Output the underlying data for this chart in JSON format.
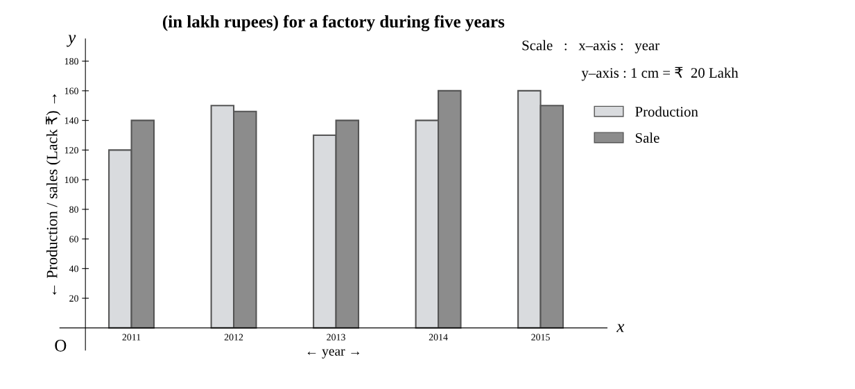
{
  "chart_data": {
    "type": "bar",
    "title": "(in lakh rupees) for a factory during five years",
    "xlabel": "← year →",
    "ylabel": "← Production / sales (Lack ₹) →",
    "categories": [
      "2011",
      "2012",
      "2013",
      "2014",
      "2015"
    ],
    "series": [
      {
        "name": "Production",
        "color": "#d9dbde",
        "values": [
          120,
          150,
          130,
          140,
          160
        ]
      },
      {
        "name": "Sale",
        "color": "#8c8c8c",
        "values": [
          140,
          146,
          140,
          160,
          150
        ]
      }
    ],
    "ylim": [
      -15,
      195
    ],
    "yticks": [
      20,
      40,
      60,
      80,
      100,
      120,
      140,
      160,
      180
    ],
    "grid": false,
    "legend": "top right",
    "annotations": [
      "Scale   :   x–axis :   year",
      "y–axis : 1 cm = ₹  20 Lakh",
      "O",
      "x",
      "y"
    ]
  }
}
